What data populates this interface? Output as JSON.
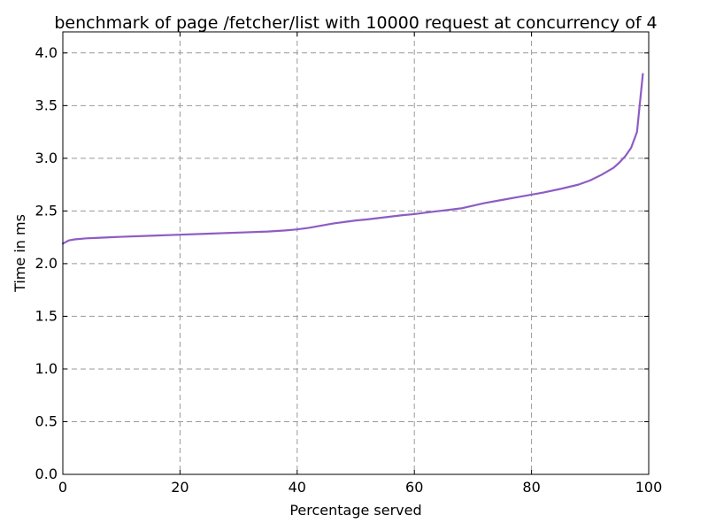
{
  "colors": {
    "series": "#8e5cc4",
    "grid": "#999999",
    "axis": "#000000",
    "background": "#ffffff"
  },
  "chart_data": {
    "type": "line",
    "title": "benchmark of page /fetcher/list with 10000 request at concurrency of 4",
    "xlabel": "Percentage served",
    "ylabel": "Time in ms",
    "xlim": [
      0,
      100
    ],
    "ylim": [
      0,
      4.2
    ],
    "xticks": [
      0,
      20,
      40,
      60,
      80,
      100
    ],
    "xtick_labels": [
      "0",
      "20",
      "40",
      "60",
      "80",
      "100"
    ],
    "yticks": [
      0,
      0.5,
      1.0,
      1.5,
      2.0,
      2.5,
      3.0,
      3.5,
      4.0
    ],
    "ytick_labels": [
      "0.0",
      "0.5",
      "1.0",
      "1.5",
      "2.0",
      "2.5",
      "3.0",
      "3.5",
      "4.0"
    ],
    "grid": true,
    "grid_style": "dashed",
    "series": [
      {
        "color": "#8e5cc4",
        "x": [
          0,
          1,
          2,
          4,
          6,
          8,
          10,
          15,
          20,
          25,
          30,
          35,
          38,
          40,
          42,
          44,
          46,
          48,
          50,
          52,
          55,
          58,
          60,
          62,
          65,
          68,
          70,
          72,
          75,
          78,
          80,
          82,
          85,
          88,
          90,
          92,
          94,
          95,
          96,
          97,
          98,
          99
        ],
        "y": [
          2.19,
          2.22,
          2.23,
          2.24,
          2.245,
          2.25,
          2.255,
          2.265,
          2.275,
          2.285,
          2.295,
          2.305,
          2.315,
          2.325,
          2.34,
          2.36,
          2.38,
          2.395,
          2.41,
          2.42,
          2.44,
          2.46,
          2.47,
          2.485,
          2.505,
          2.525,
          2.55,
          2.575,
          2.605,
          2.635,
          2.655,
          2.675,
          2.71,
          2.75,
          2.79,
          2.845,
          2.91,
          2.96,
          3.02,
          3.1,
          3.25,
          3.8
        ]
      }
    ]
  }
}
